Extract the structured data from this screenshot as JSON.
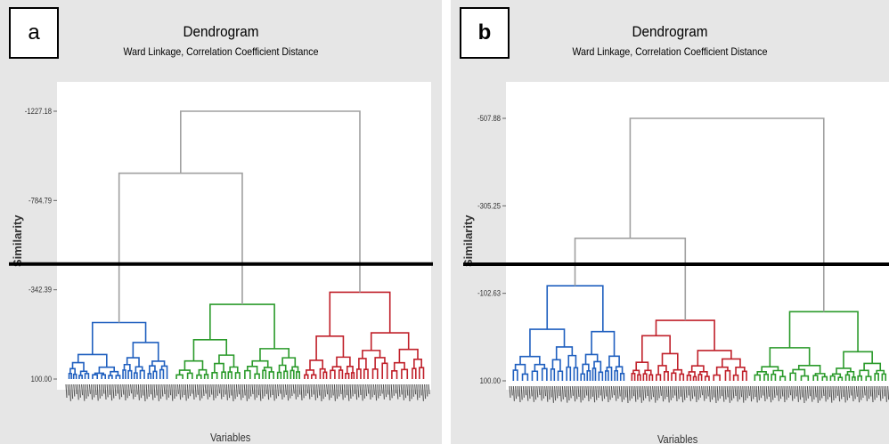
{
  "chart_data": [
    {
      "type": "dendrogram",
      "panel_label": "a",
      "title": "Dendrogram",
      "subtitle": "Ward Linkage, Correlation Coefficient Distance",
      "xlabel": "Variables",
      "ylabel": "Similarity",
      "y_ticks": [
        "-1227.18",
        "-784.79",
        "-342.39",
        "100.00"
      ],
      "y_tick_values": [
        -1227.18,
        -784.79,
        -342.39,
        100.0
      ],
      "cut_line_similarity": -470,
      "clusters": [
        {
          "color": "#1f5fbf",
          "merge_similarity": -180
        },
        {
          "color": "#2a9a2a",
          "merge_similarity": -270
        },
        {
          "color": "#c0202a",
          "merge_similarity": -330
        }
      ],
      "upper_merges": [
        {
          "join": "blue+green",
          "similarity": -920
        },
        {
          "join": "all",
          "similarity": -1227.18
        }
      ]
    },
    {
      "type": "dendrogram",
      "panel_label": "b",
      "title": "Dendrogram",
      "subtitle": "Ward Linkage, Correlation Coefficient Distance",
      "xlabel": "Variables",
      "ylabel": "Similarity",
      "y_ticks": [
        "-507.88",
        "-305.25",
        "-102.63",
        "100.00"
      ],
      "y_tick_values": [
        -507.88,
        -305.25,
        -102.63,
        100.0
      ],
      "cut_line_similarity": -170,
      "clusters": [
        {
          "color": "#1f5fbf",
          "merge_similarity": -120
        },
        {
          "color": "#c0202a",
          "merge_similarity": -40
        },
        {
          "color": "#2a9a2a",
          "merge_similarity": -60
        }
      ],
      "upper_merges": [
        {
          "join": "blue+red",
          "similarity": -230
        },
        {
          "join": "all",
          "similarity": -507.88
        }
      ]
    }
  ],
  "colors": {
    "blue": "#1f5fbf",
    "green": "#2a9a2a",
    "red": "#c0202a",
    "grey": "#a0a0a0",
    "cut": "#000000"
  }
}
